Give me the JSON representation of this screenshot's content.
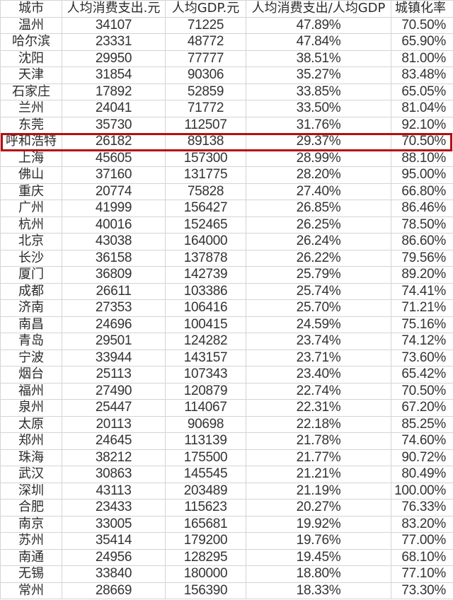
{
  "highlight_color": "#b50d12",
  "highlight_city": "呼和浩特",
  "headers": [
    "城市",
    "人均消费支出.元",
    "人均GDP.元",
    "人均消费支出/人均GDP",
    "城镇化率"
  ],
  "rows": [
    [
      "温州",
      "34107",
      "71225",
      "47.89%",
      "70.50%"
    ],
    [
      "哈尔滨",
      "23331",
      "48772",
      "47.84%",
      "65.90%"
    ],
    [
      "沈阳",
      "29950",
      "77777",
      "38.51%",
      "81.00%"
    ],
    [
      "天津",
      "31854",
      "90306",
      "35.27%",
      "83.48%"
    ],
    [
      "石家庄",
      "17892",
      "52859",
      "33.85%",
      "65.05%"
    ],
    [
      "兰州",
      "24041",
      "71772",
      "33.50%",
      "81.04%"
    ],
    [
      "东莞",
      "35730",
      "112507",
      "31.76%",
      "92.10%"
    ],
    [
      "呼和浩特",
      "26182",
      "89138",
      "29.37%",
      "70.50%"
    ],
    [
      "上海",
      "45605",
      "157300",
      "28.99%",
      "88.10%"
    ],
    [
      "佛山",
      "37160",
      "131775",
      "28.20%",
      "95.00%"
    ],
    [
      "重庆",
      "20774",
      "75828",
      "27.40%",
      "66.80%"
    ],
    [
      "广州",
      "41999",
      "156427",
      "26.85%",
      "86.46%"
    ],
    [
      "杭州",
      "40016",
      "152465",
      "26.25%",
      "78.50%"
    ],
    [
      "北京",
      "43038",
      "164000",
      "26.24%",
      "86.60%"
    ],
    [
      "长沙",
      "36158",
      "137878",
      "26.22%",
      "79.56%"
    ],
    [
      "厦门",
      "36809",
      "142739",
      "25.79%",
      "89.20%"
    ],
    [
      "成都",
      "26611",
      "103386",
      "25.74%",
      "74.41%"
    ],
    [
      "济南",
      "27353",
      "106416",
      "25.70%",
      "71.21%"
    ],
    [
      "南昌",
      "24696",
      "100415",
      "24.59%",
      "75.16%"
    ],
    [
      "青岛",
      "29501",
      "124282",
      "23.74%",
      "74.12%"
    ],
    [
      "宁波",
      "33944",
      "143157",
      "23.71%",
      "73.60%"
    ],
    [
      "烟台",
      "25113",
      "107343",
      "23.40%",
      "65.42%"
    ],
    [
      "福州",
      "27490",
      "120879",
      "22.74%",
      "70.50%"
    ],
    [
      "泉州",
      "25447",
      "114067",
      "22.31%",
      "67.20%"
    ],
    [
      "太原",
      "20113",
      "90698",
      "22.18%",
      "85.25%"
    ],
    [
      "郑州",
      "24645",
      "113139",
      "21.78%",
      "74.60%"
    ],
    [
      "珠海",
      "38212",
      "175500",
      "21.77%",
      "90.72%"
    ],
    [
      "武汉",
      "30863",
      "145545",
      "21.21%",
      "80.49%"
    ],
    [
      "深圳",
      "43113",
      "203489",
      "21.19%",
      "100.00%"
    ],
    [
      "合肥",
      "23433",
      "115623",
      "20.27%",
      "76.33%"
    ],
    [
      "南京",
      "33005",
      "165681",
      "19.92%",
      "83.20%"
    ],
    [
      "苏州",
      "35414",
      "179200",
      "19.76%",
      "77.00%"
    ],
    [
      "南通",
      "24956",
      "128295",
      "19.45%",
      "68.10%"
    ],
    [
      "无锡",
      "33840",
      "180000",
      "18.80%",
      "77.10%"
    ],
    [
      "常州",
      "28669",
      "156390",
      "18.33%",
      "73.30%"
    ]
  ]
}
